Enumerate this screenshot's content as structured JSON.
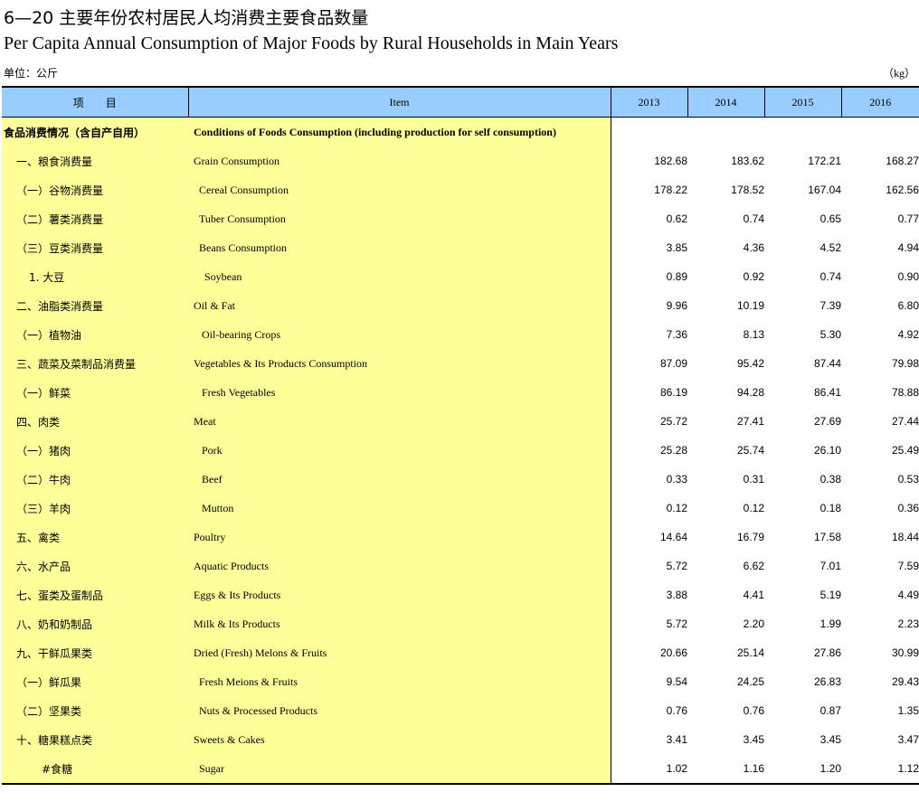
{
  "title_cn": "6—20 主要年份农村居民人均消费主要食品数量",
  "title_en": "Per Capita Annual Consumption of Major Foods by  Rural Households in Main Years",
  "unit_cn": "单位：公斤",
  "unit_en": "（kg）",
  "header": {
    "col_cn": "项　　目",
    "col_en": "Item",
    "years": [
      "2013",
      "2014",
      "2015",
      "2016"
    ]
  },
  "rows": [
    {
      "cn": "食品消费情况（含自产自用）",
      "en": "Conditions of Foods Consumption (including production for self consumption)",
      "v": [
        "",
        "",
        "",
        ""
      ]
    },
    {
      "cn": "一、粮食消费量",
      "en": "Grain Consumption",
      "v": [
        "182.68",
        "183.62",
        "172.21",
        "168.27"
      ]
    },
    {
      "cn": "（一）谷物消费量",
      "en": "Cereal  Consumption",
      "v": [
        "178.22",
        "178.52",
        "167.04",
        "162.56"
      ]
    },
    {
      "cn": "（二）薯类消费量",
      "en": "Tuber  Consumption",
      "v": [
        "0.62",
        "0.74",
        "0.65",
        "0.77"
      ]
    },
    {
      "cn": "（三）豆类消费量",
      "en": "Beans  Consumption",
      "v": [
        "3.85",
        "4.36",
        "4.52",
        "4.94"
      ]
    },
    {
      "cn": "1. 大豆",
      "en": "Soybean",
      "v": [
        "0.89",
        "0.92",
        "0.74",
        "0.90"
      ]
    },
    {
      "cn": "二、油脂类消费量",
      "en": "Oil & Fat",
      "v": [
        "9.96",
        "10.19",
        "7.39",
        "6.80"
      ]
    },
    {
      "cn": "（一）植物油",
      "en": "Oil-bearing Crops",
      "v": [
        "7.36",
        "8.13",
        "5.30",
        "4.92"
      ]
    },
    {
      "cn": "三、蔬菜及菜制品消费量",
      "en": "Vegetables &  Its Products Consumption",
      "v": [
        "87.09",
        "95.42",
        "87.44",
        "79.98"
      ]
    },
    {
      "cn": "（一）鲜菜",
      "en": "Fresh Vegetables",
      "v": [
        "86.19",
        "94.28",
        "86.41",
        "78.88"
      ]
    },
    {
      "cn": "四、肉类",
      "en": "Meat",
      "v": [
        "25.72",
        "27.41",
        "27.69",
        "27.44"
      ]
    },
    {
      "cn": "（一）猪肉",
      "en": "Pork",
      "v": [
        "25.28",
        "25.74",
        "26.10",
        "25.49"
      ]
    },
    {
      "cn": "（二）牛肉",
      "en": "Beef",
      "v": [
        "0.33",
        "0.31",
        "0.38",
        "0.53"
      ]
    },
    {
      "cn": "（三）羊肉",
      "en": "Mutton",
      "v": [
        "0.12",
        "0.12",
        "0.18",
        "0.36"
      ]
    },
    {
      "cn": "五、禽类",
      "en": "Poultry",
      "v": [
        "14.64",
        "16.79",
        "17.58",
        "18.44"
      ]
    },
    {
      "cn": "六、水产品",
      "en": "Aquatic Products",
      "v": [
        "5.72",
        "6.62",
        "7.01",
        "7.59"
      ]
    },
    {
      "cn": "七、蛋类及蛋制品",
      "en": "Eggs  &  Its Products",
      "v": [
        "3.88",
        "4.41",
        "5.19",
        "4.49"
      ]
    },
    {
      "cn": "八、奶和奶制品",
      "en": "Milk & Its Products",
      "v": [
        "5.72",
        "2.20",
        "1.99",
        "2.23"
      ]
    },
    {
      "cn": "九、干鲜瓜果类",
      "en": "Dried (Fresh) Melons & Fruits",
      "v": [
        "20.66",
        "25.14",
        "27.86",
        "30.99"
      ]
    },
    {
      "cn": "（一）鲜瓜果",
      "en": "Fresh Meions & Fruits",
      "v": [
        "9.54",
        "24.25",
        "26.83",
        "29.43"
      ]
    },
    {
      "cn": "（二）坚果类",
      "en": "Nuts & Processed Products",
      "v": [
        "0.76",
        "0.76",
        "0.87",
        "1.35"
      ]
    },
    {
      "cn": "十、糖果糕点类",
      "en": "Sweets & Cakes",
      "v": [
        "3.41",
        "3.45",
        "3.45",
        "3.47"
      ]
    },
    {
      "cn": "#食糖",
      "en": "Sugar",
      "v": [
        "1.02",
        "1.16",
        "1.20",
        "1.12"
      ]
    }
  ]
}
